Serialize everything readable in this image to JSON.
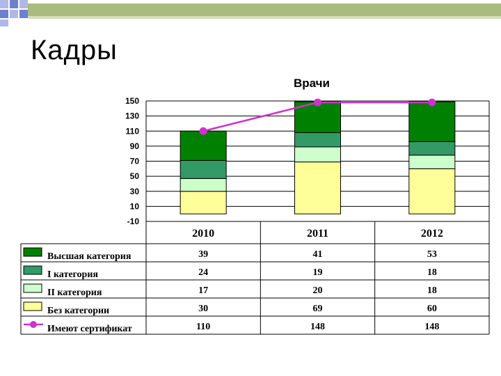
{
  "slide": {
    "title": "Кадры"
  },
  "chart_data": {
    "type": "bar",
    "stacked": true,
    "title": "Врачи",
    "xlabel": "",
    "ylabel": "",
    "categories": [
      "2010",
      "2011",
      "2012"
    ],
    "ylim": [
      -10,
      150
    ],
    "yticks": [
      150,
      130,
      110,
      90,
      70,
      50,
      30,
      10,
      -10
    ],
    "grid": true,
    "legend": "table-bottom",
    "series": [
      {
        "name": "Без категории",
        "type": "bar",
        "color": "#FFFF99",
        "values": [
          30,
          69,
          60
        ]
      },
      {
        "name": "II категория",
        "type": "bar",
        "color": "#CCFFCC",
        "values": [
          17,
          20,
          18
        ]
      },
      {
        "name": "I категория",
        "type": "bar",
        "color": "#339966",
        "values": [
          24,
          19,
          18
        ]
      },
      {
        "name": "Высшая категория",
        "type": "bar",
        "color": "#008000",
        "values": [
          39,
          41,
          53
        ]
      },
      {
        "name": "Имеют сертификат",
        "type": "line",
        "color": "#CC33CC",
        "values": [
          110,
          148,
          148
        ]
      }
    ],
    "table_order": [
      3,
      2,
      1,
      0,
      4
    ]
  }
}
